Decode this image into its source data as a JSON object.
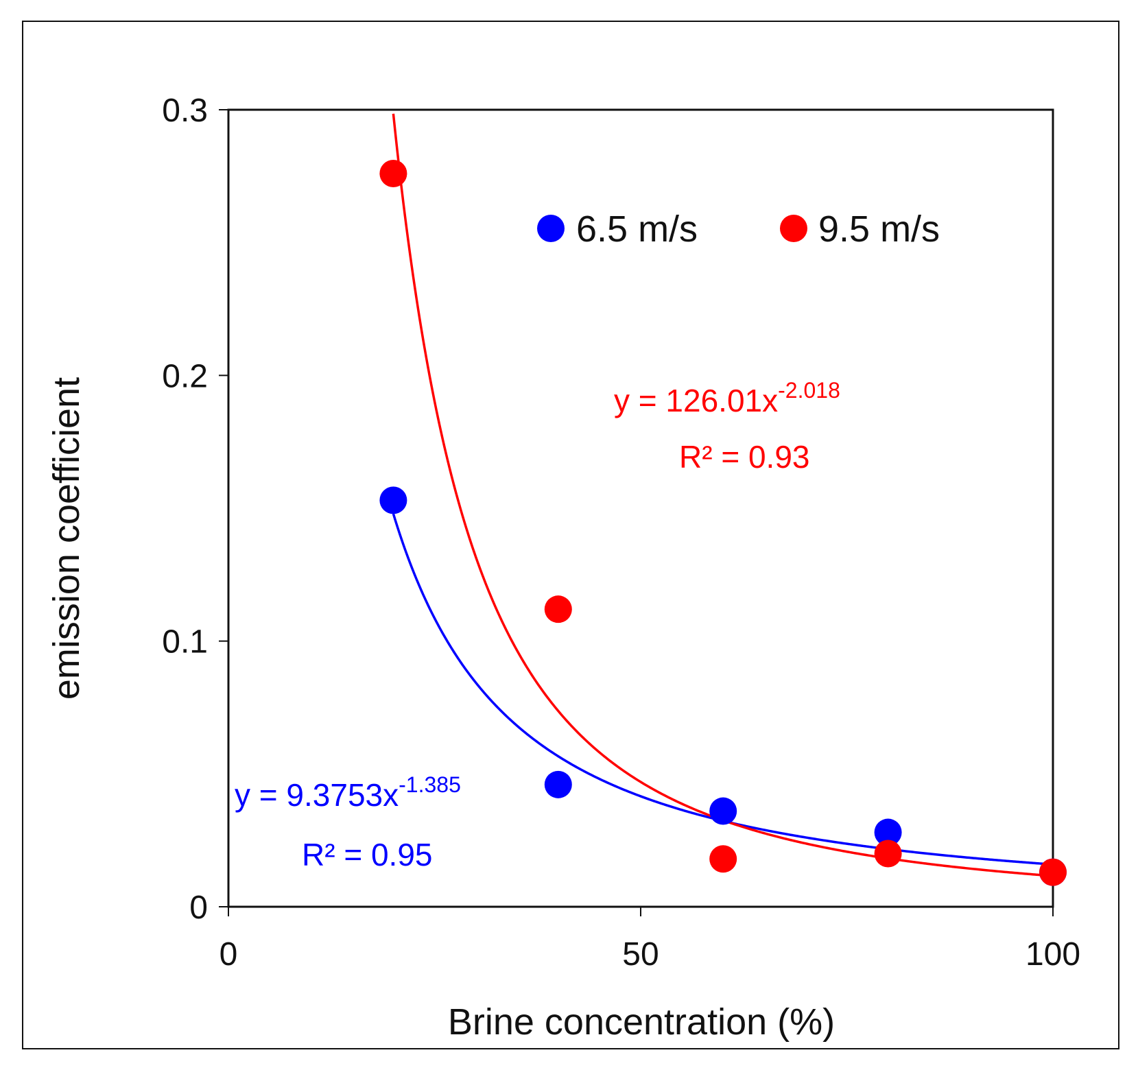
{
  "chart_data": {
    "type": "scatter",
    "title": "",
    "xlabel": "Brine concentration (%)",
    "ylabel": "emission coefficient",
    "xlim": [
      0,
      100
    ],
    "ylim": [
      0,
      0.3
    ],
    "xticks": [
      0,
      50,
      100
    ],
    "xtick_labels": [
      "0",
      "50",
      "100"
    ],
    "yticks": [
      0,
      0.1,
      0.2,
      0.3
    ],
    "ytick_labels": [
      "0",
      "0.1",
      "0.2",
      "0.3"
    ],
    "grid": false,
    "legend_placement": "top-right",
    "series": [
      {
        "name": "6.5 m/s",
        "color": "#0000ff",
        "x": [
          20,
          40,
          60,
          80,
          100
        ],
        "y": [
          0.153,
          0.046,
          0.036,
          0.028,
          0.013
        ],
        "fit": {
          "type": "power",
          "a": 9.3753,
          "b": -1.385,
          "equation_base": "y = 9.3753x",
          "equation_exp": "-1.385",
          "r2_label": "R² = 0.95"
        }
      },
      {
        "name": "9.5 m/s",
        "color": "#ff0000",
        "x": [
          20,
          40,
          60,
          80,
          100
        ],
        "y": [
          0.276,
          0.112,
          0.018,
          0.02,
          0.013
        ],
        "fit": {
          "type": "power",
          "a": 126.01,
          "b": -2.018,
          "equation_base": "y = 126.01x",
          "equation_exp": "-2.018",
          "r2_label": "R² = 0.93"
        }
      }
    ]
  }
}
